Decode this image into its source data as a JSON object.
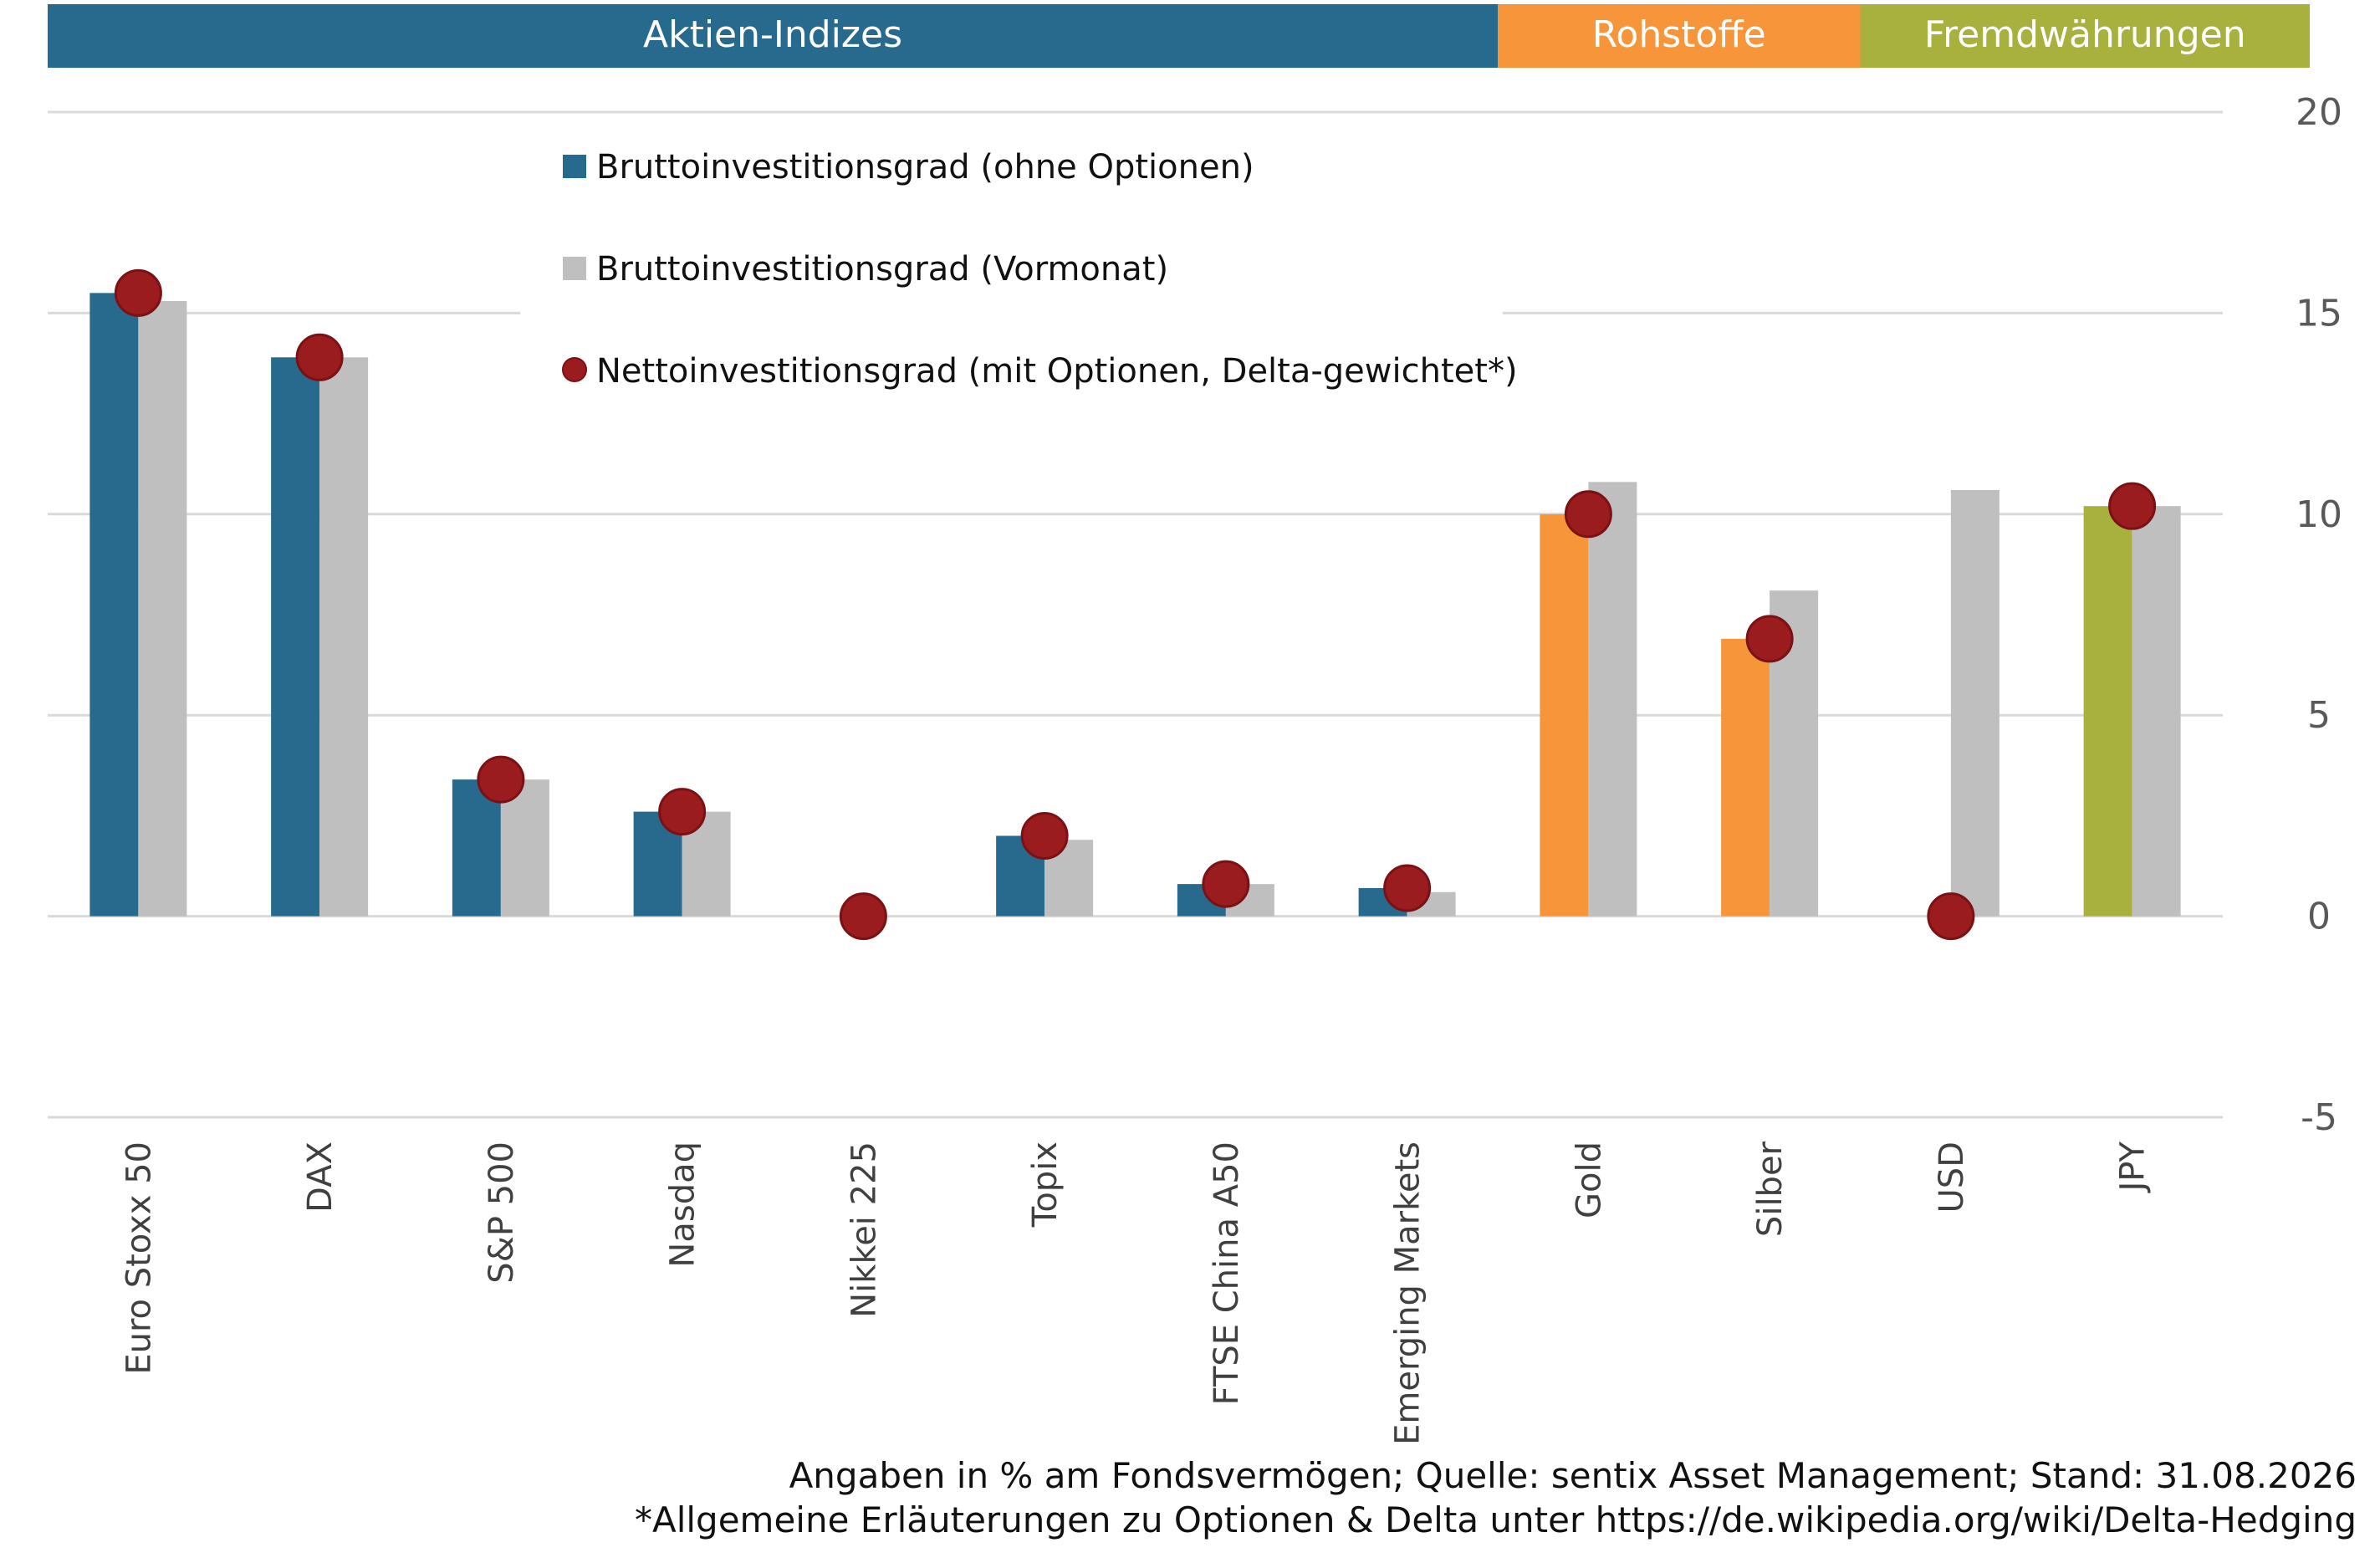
{
  "chart_data": {
    "type": "bar",
    "groups": [
      {
        "label": "Aktien-Indizes",
        "color": "#286A8E",
        "categories": [
          "Euro Stoxx 50",
          "DAX",
          "S&P 500",
          "Nasdaq",
          "Nikkei 225",
          "Topix",
          "FTSE China A50",
          "Emerging Markets"
        ]
      },
      {
        "label": "Rohstoffe",
        "color": "#F7953A",
        "categories": [
          "Gold",
          "Silber"
        ]
      },
      {
        "label": "Fremdwährungen",
        "color": "#A8B03E",
        "categories": [
          "USD",
          "JPY"
        ]
      }
    ],
    "categories": [
      "Euro Stoxx 50",
      "DAX",
      "S&P 500",
      "Nasdaq",
      "Nikkei 225",
      "Topix",
      "FTSE China A50",
      "Emerging Markets",
      "Gold",
      "Silber",
      "USD",
      "JPY"
    ],
    "series": [
      {
        "name": "Bruttoinvestitionsgrad (ohne Optionen)",
        "kind": "bar",
        "color": "#286A8E",
        "values": [
          15.5,
          13.9,
          3.4,
          2.6,
          0,
          2.0,
          0.8,
          0.7,
          10.0,
          6.9,
          0,
          10.2
        ]
      },
      {
        "name": "Bruttoinvestitionsgrad (Vormonat)",
        "kind": "bar",
        "color": "#BFBFBF",
        "values": [
          15.3,
          13.9,
          3.4,
          2.6,
          0,
          1.9,
          0.8,
          0.6,
          10.8,
          8.1,
          10.6,
          10.2
        ]
      },
      {
        "name": "Nettoinvestitionsgrad (mit Optionen, Delta-gewichtet*)",
        "kind": "marker",
        "color": "#9B1C1F",
        "values": [
          15.5,
          13.9,
          3.4,
          2.6,
          0,
          2.0,
          0.8,
          0.7,
          10.0,
          6.9,
          0,
          10.2
        ]
      }
    ],
    "ylim": [
      -5,
      20
    ],
    "yticks": [
      20,
      15,
      10,
      5,
      0,
      -5
    ],
    "y_axis_side": "right",
    "grid": true,
    "legend_position": "top-center"
  },
  "footnotes": {
    "line1": "Angaben in % am Fondsvermögen; Quelle: sentix Asset Management; Stand: 31.08.2026",
    "line2": "*Allgemeine Erläuterungen zu Optionen & Delta unter https://de.wikipedia.org/wiki/Delta-Hedging"
  }
}
